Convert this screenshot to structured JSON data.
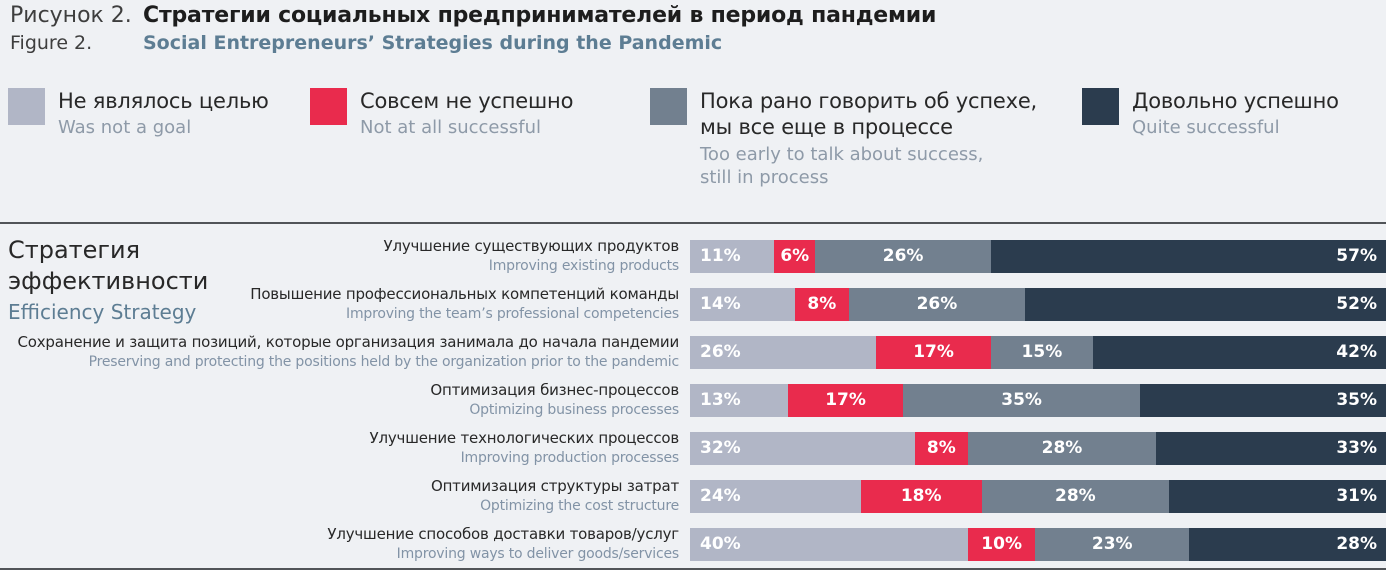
{
  "page": {
    "background": "#eff1f4",
    "rule_color": "#515458"
  },
  "header": {
    "label_ru": "Рисунок 2.",
    "title_ru": "Стратегии социальных предпринимателей в период пандемии",
    "label_en": "Figure 2.",
    "title_en": "Social Entrepreneurs’ Strategies during the Pandemic"
  },
  "legend": {
    "items": [
      {
        "ru": "Не являлось целью",
        "en": "Was not a goal",
        "color": "#b1b6c6"
      },
      {
        "ru": "Совсем не успешно",
        "en": "Not at all successful",
        "color": "#e92b4d"
      },
      {
        "ru": "Пока рано говорить об успехе,\nмы все еще в процессе",
        "en": "Too early to talk about success,\nstill in process",
        "color": "#72808f"
      },
      {
        "ru": "Довольно успешно",
        "en": "Quite successful",
        "color": "#2b3c4e"
      }
    ]
  },
  "group_label": {
    "ru": "Стратегия\nэффективности",
    "en": "Efficiency Strategy"
  },
  "chart_data": {
    "type": "bar",
    "orientation": "horizontal",
    "stacked": true,
    "value_format": "percent",
    "legend_position": "top",
    "categories": [
      {
        "ru": "Улучшение существующих продуктов",
        "en": "Improving existing products"
      },
      {
        "ru": "Повышение профессиональных компетенций команды",
        "en": "Improving the team’s professional competencies"
      },
      {
        "ru": "Сохранение и защита позиций, которые организация занимала до начала пандемии",
        "en": "Preserving and protecting the positions held by the organization prior to the pandemic"
      },
      {
        "ru": "Оптимизация бизнес-процессов",
        "en": "Optimizing business processes"
      },
      {
        "ru": "Улучшение технологических процессов",
        "en": "Improving production processes"
      },
      {
        "ru": "Оптимизация структуры затрат",
        "en": "Optimizing the cost structure"
      },
      {
        "ru": "Улучшение способов доставки товаров/услуг",
        "en": "Improving ways to deliver goods/services"
      }
    ],
    "series": [
      {
        "name": "Не являлось целью / Was not a goal",
        "color": "#b1b6c6",
        "values": [
          11,
          14,
          26,
          13,
          32,
          24,
          40
        ]
      },
      {
        "name": "Совсем не успешно / Not at all successful",
        "color": "#e92b4d",
        "values": [
          6,
          8,
          17,
          17,
          8,
          18,
          10
        ]
      },
      {
        "name": "Пока рано говорить об успехе, мы все еще в процессе / Too early to talk about success, still in process",
        "color": "#72808f",
        "values": [
          26,
          26,
          15,
          35,
          28,
          28,
          23
        ]
      },
      {
        "name": "Довольно успешно / Quite successful",
        "color": "#2b3c4e",
        "values": [
          57,
          52,
          42,
          35,
          33,
          31,
          28
        ]
      }
    ]
  }
}
